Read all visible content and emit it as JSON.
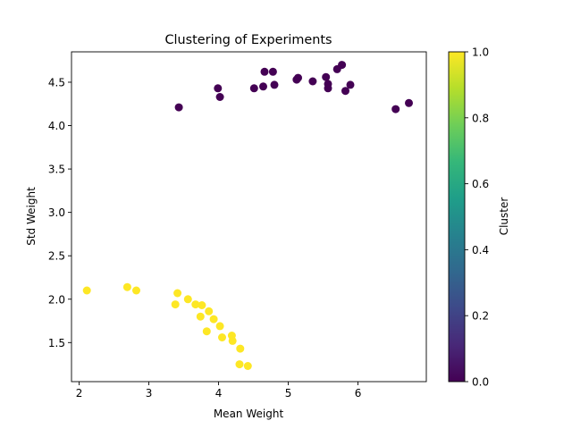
{
  "chart_data": {
    "type": "scatter",
    "title": "Clustering of Experiments",
    "xlabel": "Mean Weight",
    "ylabel": "Std Weight",
    "xlim": [
      1.89,
      6.98
    ],
    "ylim": [
      1.05,
      4.85
    ],
    "xticks": [
      2,
      3,
      4,
      5,
      6
    ],
    "yticks": [
      1.5,
      2.0,
      2.5,
      3.0,
      3.5,
      4.0,
      4.5
    ],
    "xtick_labels": [
      "2",
      "3",
      "4",
      "5",
      "6"
    ],
    "ytick_labels": [
      "1.5",
      "2.0",
      "2.5",
      "3.0",
      "3.5",
      "4.0",
      "4.5"
    ],
    "grid": false,
    "colorbar": {
      "label": "Cluster",
      "range": [
        0.0,
        1.0
      ],
      "ticks": [
        0.0,
        0.2,
        0.4,
        0.6,
        0.8,
        1.0
      ],
      "tick_labels": [
        "0.0",
        "0.2",
        "0.4",
        "0.6",
        "0.8",
        "1.0"
      ],
      "colormap": "viridis",
      "colors": [
        "#440154",
        "#482878",
        "#3e4989",
        "#31688e",
        "#26828e",
        "#1f9e89",
        "#35b779",
        "#6ece58",
        "#b5de2b",
        "#fde725"
      ]
    },
    "points": [
      {
        "x": 3.43,
        "y": 4.21,
        "cluster": 0
      },
      {
        "x": 3.99,
        "y": 4.43,
        "cluster": 0
      },
      {
        "x": 4.02,
        "y": 4.33,
        "cluster": 0
      },
      {
        "x": 4.51,
        "y": 4.43,
        "cluster": 0
      },
      {
        "x": 4.64,
        "y": 4.45,
        "cluster": 0
      },
      {
        "x": 4.66,
        "y": 4.62,
        "cluster": 0
      },
      {
        "x": 4.78,
        "y": 4.62,
        "cluster": 0
      },
      {
        "x": 4.8,
        "y": 4.47,
        "cluster": 0
      },
      {
        "x": 5.12,
        "y": 4.53,
        "cluster": 0
      },
      {
        "x": 5.14,
        "y": 4.55,
        "cluster": 0
      },
      {
        "x": 5.35,
        "y": 4.51,
        "cluster": 0
      },
      {
        "x": 5.54,
        "y": 4.56,
        "cluster": 0
      },
      {
        "x": 5.57,
        "y": 4.48,
        "cluster": 0
      },
      {
        "x": 5.57,
        "y": 4.43,
        "cluster": 0
      },
      {
        "x": 5.7,
        "y": 4.65,
        "cluster": 0
      },
      {
        "x": 5.77,
        "y": 4.7,
        "cluster": 0
      },
      {
        "x": 5.82,
        "y": 4.4,
        "cluster": 0
      },
      {
        "x": 5.89,
        "y": 4.47,
        "cluster": 0
      },
      {
        "x": 6.54,
        "y": 4.19,
        "cluster": 0
      },
      {
        "x": 6.73,
        "y": 4.26,
        "cluster": 0
      },
      {
        "x": 2.11,
        "y": 2.1,
        "cluster": 1
      },
      {
        "x": 2.69,
        "y": 2.14,
        "cluster": 1
      },
      {
        "x": 2.82,
        "y": 2.1,
        "cluster": 1
      },
      {
        "x": 3.38,
        "y": 1.94,
        "cluster": 1
      },
      {
        "x": 3.41,
        "y": 2.07,
        "cluster": 1
      },
      {
        "x": 3.56,
        "y": 2.0,
        "cluster": 1
      },
      {
        "x": 3.67,
        "y": 1.94,
        "cluster": 1
      },
      {
        "x": 3.74,
        "y": 1.8,
        "cluster": 1
      },
      {
        "x": 3.76,
        "y": 1.93,
        "cluster": 1
      },
      {
        "x": 3.83,
        "y": 1.63,
        "cluster": 1
      },
      {
        "x": 3.86,
        "y": 1.86,
        "cluster": 1
      },
      {
        "x": 3.93,
        "y": 1.77,
        "cluster": 1
      },
      {
        "x": 4.02,
        "y": 1.69,
        "cluster": 1
      },
      {
        "x": 4.05,
        "y": 1.56,
        "cluster": 1
      },
      {
        "x": 4.19,
        "y": 1.58,
        "cluster": 1
      },
      {
        "x": 4.2,
        "y": 1.52,
        "cluster": 1
      },
      {
        "x": 4.3,
        "y": 1.25,
        "cluster": 1
      },
      {
        "x": 4.31,
        "y": 1.43,
        "cluster": 1
      },
      {
        "x": 4.42,
        "y": 1.23,
        "cluster": 1
      }
    ]
  }
}
